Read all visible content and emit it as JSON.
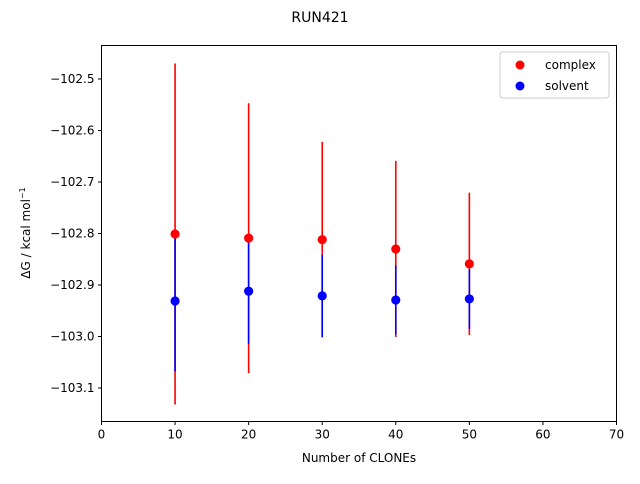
{
  "chart_data": {
    "type": "scatter",
    "title": "RUN421",
    "xlabel": "Number of CLONEs",
    "ylabel_main": "ΔG / kcal mol",
    "ylabel_sup": "−1",
    "xlim": [
      0,
      70
    ],
    "ylim": [
      -103.165,
      -102.435
    ],
    "xticks": [
      0,
      10,
      20,
      30,
      40,
      50,
      60,
      70
    ],
    "yticks": [
      -103.1,
      -103.0,
      -102.9,
      -102.8,
      -102.7,
      -102.6,
      -102.5
    ],
    "ytick_labels": [
      "−103.1",
      "−103.0",
      "−102.9",
      "−102.8",
      "−102.7",
      "−102.6",
      "−102.5"
    ],
    "grid": false,
    "legend_position": "top-right",
    "series": [
      {
        "name": "complex",
        "color": "#ff0000",
        "x": [
          10,
          20,
          30,
          40,
          50
        ],
        "y": [
          -102.801,
          -102.809,
          -102.812,
          -102.83,
          -102.859
        ],
        "err": [
          0.331,
          0.262,
          0.19,
          0.171,
          0.138
        ]
      },
      {
        "name": "solvent",
        "color": "#0000ff",
        "x": [
          10,
          20,
          30,
          40,
          50
        ],
        "y": [
          -102.931,
          -102.912,
          -102.921,
          -102.929,
          -102.927
        ],
        "err": [
          0.137,
          0.102,
          0.08,
          0.067,
          0.058
        ]
      }
    ]
  }
}
